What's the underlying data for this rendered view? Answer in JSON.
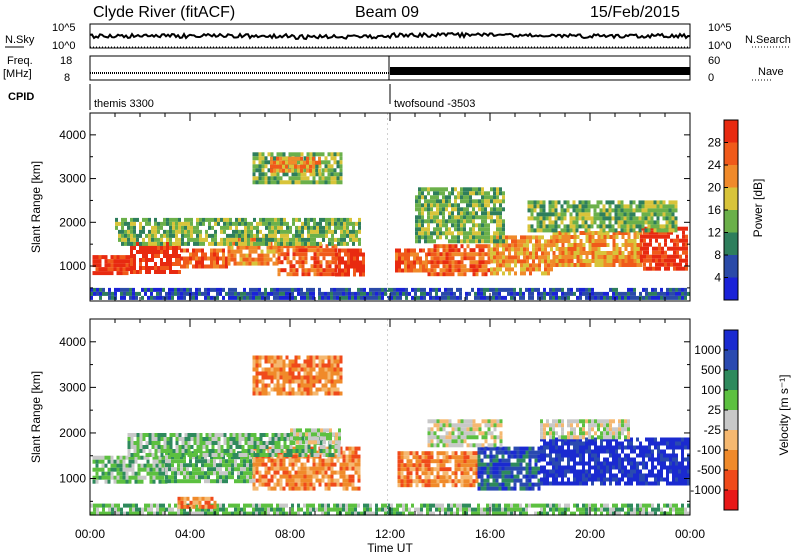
{
  "header": {
    "station": "Clyde River (fitACF)",
    "beam": "Beam 09",
    "date": "15/Feb/2015"
  },
  "strips": {
    "nsky_label": "N.Sky",
    "nsky_ticks": [
      "10^5",
      "10^0"
    ],
    "nsearch_label": "N.Search",
    "nsearch_ticks": [
      "10^5",
      "10^0"
    ],
    "freq_label_top": "Freq.",
    "freq_label_unit": "[MHz]",
    "freq_ticks": [
      "18",
      "8"
    ],
    "nave_label": "Nave",
    "nave_ticks": [
      "60",
      "0"
    ],
    "cpid_label": "CPID",
    "cpid_programs": [
      "themis 3300",
      "twofsound -3503"
    ]
  },
  "colors": {
    "power": [
      "#1a22d8",
      "#2a4aa8",
      "#2e7e5c",
      "#6bb04a",
      "#d8c43a",
      "#f08a2a",
      "#f05a1a",
      "#e82a10"
    ],
    "velocity": [
      "#e81818",
      "#f04a1a",
      "#f08a2a",
      "#f5b870",
      "#c8c8c8",
      "#5cc040",
      "#2e8a5c",
      "#2a4ab0",
      "#1a2ad0"
    ]
  },
  "chart_data": [
    {
      "type": "heatmap",
      "name": "power",
      "xlabel": "Time UT",
      "ylabel": "Slant Range [km]",
      "x_ticks": [
        "00:00",
        "04:00",
        "08:00",
        "12:00",
        "16:00",
        "20:00",
        "00:00"
      ],
      "xlim_hours": [
        0,
        24
      ],
      "ylim_km": [
        200,
        4500
      ],
      "y_ticks": [
        1000,
        2000,
        3000,
        4000
      ],
      "colorbar_label": "Power [dB]",
      "colorbar_ticks": [
        "28",
        "24",
        "20",
        "16",
        "12",
        "8",
        "4"
      ],
      "bands": [
        {
          "t0": 0.1,
          "t1": 1.6,
          "r0": 800,
          "r1": 1250,
          "level": 7
        },
        {
          "t0": 1.6,
          "t1": 3.6,
          "r0": 900,
          "r1": 1550,
          "level": 7
        },
        {
          "t0": 3.6,
          "t1": 5.5,
          "r0": 950,
          "r1": 1400,
          "level": 6
        },
        {
          "t0": 5.5,
          "t1": 7.5,
          "r0": 1100,
          "r1": 1650,
          "level": 5
        },
        {
          "t0": 7.5,
          "t1": 9.8,
          "r0": 800,
          "r1": 1500,
          "level": 6
        },
        {
          "t0": 9.8,
          "t1": 11.0,
          "r0": 800,
          "r1": 1400,
          "level": 7
        },
        {
          "t0": 1.0,
          "t1": 10.8,
          "r0": 1500,
          "r1": 2100,
          "level": 3
        },
        {
          "t0": 6.5,
          "t1": 10.0,
          "r0": 2900,
          "r1": 3600,
          "level": 3
        },
        {
          "t0": 7.2,
          "t1": 9.2,
          "r0": 3150,
          "r1": 3500,
          "level": 5
        },
        {
          "t0": 12.2,
          "t1": 13.5,
          "r0": 900,
          "r1": 1400,
          "level": 6
        },
        {
          "t0": 13.5,
          "t1": 16.0,
          "r0": 850,
          "r1": 1500,
          "level": 6
        },
        {
          "t0": 16.0,
          "t1": 18.5,
          "r0": 800,
          "r1": 1700,
          "level": 5
        },
        {
          "t0": 18.5,
          "t1": 22.0,
          "r0": 1000,
          "r1": 1800,
          "level": 5
        },
        {
          "t0": 22.0,
          "t1": 23.9,
          "r0": 900,
          "r1": 1900,
          "level": 7
        },
        {
          "t0": 13.0,
          "t1": 16.5,
          "r0": 1600,
          "r1": 2800,
          "level": 3
        },
        {
          "t0": 17.5,
          "t1": 23.5,
          "r0": 1800,
          "r1": 2500,
          "level": 3
        },
        {
          "t0": 0.0,
          "t1": 23.9,
          "r0": 250,
          "r1": 500,
          "level": 1
        }
      ]
    },
    {
      "type": "heatmap",
      "name": "velocity",
      "xlabel": "Time UT",
      "ylabel": "Slant Range [km]",
      "x_ticks": [
        "00:00",
        "04:00",
        "08:00",
        "12:00",
        "16:00",
        "20:00",
        "00:00"
      ],
      "xlim_hours": [
        0,
        24
      ],
      "ylim_km": [
        200,
        4500
      ],
      "y_ticks": [
        1000,
        2000,
        3000,
        4000
      ],
      "colorbar_label": "Velocity [m s⁻¹]",
      "colorbar_ticks": [
        "1000",
        "500",
        "100",
        "25",
        "-25",
        "-100",
        "-500",
        "-1000"
      ],
      "bands": [
        {
          "t0": 0.1,
          "t1": 3.0,
          "r0": 900,
          "r1": 1500,
          "level": 5
        },
        {
          "t0": 3.0,
          "t1": 6.5,
          "r0": 950,
          "r1": 1600,
          "level": 5
        },
        {
          "t0": 6.5,
          "t1": 10.8,
          "r0": 800,
          "r1": 1700,
          "level": 2
        },
        {
          "t0": 1.5,
          "t1": 10.0,
          "r0": 1500,
          "r1": 2000,
          "level": 5
        },
        {
          "t0": 8.0,
          "t1": 10.0,
          "r0": 1800,
          "r1": 2100,
          "level": 4
        },
        {
          "t0": 6.5,
          "t1": 10.0,
          "r0": 2900,
          "r1": 3700,
          "level": 2
        },
        {
          "t0": 12.3,
          "t1": 15.5,
          "r0": 850,
          "r1": 1600,
          "level": 2
        },
        {
          "t0": 15.5,
          "t1": 18.0,
          "r0": 800,
          "r1": 1700,
          "level": 7
        },
        {
          "t0": 18.0,
          "t1": 23.9,
          "r0": 900,
          "r1": 1900,
          "level": 8
        },
        {
          "t0": 13.5,
          "t1": 16.5,
          "r0": 1700,
          "r1": 2300,
          "level": 4
        },
        {
          "t0": 18.0,
          "t1": 21.5,
          "r0": 1900,
          "r1": 2300,
          "level": 4
        },
        {
          "t0": 0.0,
          "t1": 23.9,
          "r0": 250,
          "r1": 450,
          "level": 5
        },
        {
          "t0": 3.5,
          "t1": 5.0,
          "r0": 400,
          "r1": 600,
          "level": 2
        }
      ]
    }
  ]
}
